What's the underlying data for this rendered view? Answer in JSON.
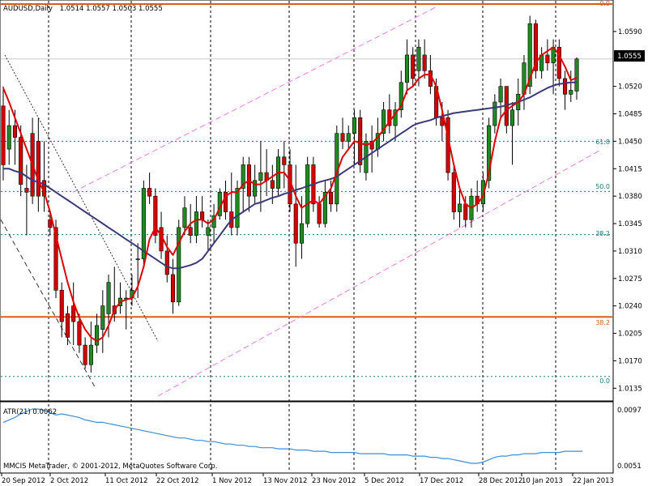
{
  "main_header": {
    "symbol": "AUDUSD,Daily",
    "ohlc": "1.0514 1.0557 1.0503 1.0555",
    "current_price": "1.0555"
  },
  "footer_text": "MMCIS MetaTrader, © 2001-2012, MetaQuotes Software Corp.",
  "atr_panel": {
    "label": "ATR(21) 0.0062",
    "ticks": [
      "0.0097",
      "0.0051"
    ]
  },
  "y_ticks": [
    "1.0590",
    "1.0555",
    "1.0520",
    "1.0485",
    "1.0450",
    "1.0415",
    "1.0380",
    "1.0345",
    "1.0310",
    "1.0275",
    "1.0240",
    "1.0205",
    "1.0170",
    "1.0135"
  ],
  "x_ticks": [
    "20 Sep 2012",
    "2 Oct 2012",
    "11 Oct 2012",
    "22 Oct 2012",
    "1 Nov 2012",
    "13 Nov 2012",
    "23 Nov 2012",
    "5 Dec 2012",
    "17 Dec 2012",
    "28 Dec 2012",
    "10 Jan 2013",
    "22 Jan 2013"
  ],
  "fib_labels": {
    "top_orange": "0.0",
    "orange_382": "38.2",
    "teal_618": "61.8",
    "teal_50": "50.0",
    "teal_382": "38.2",
    "teal_0": "0.0"
  },
  "colors": {
    "bull": "#1f8a1f",
    "bear": "#d40000",
    "ma_fast": "#e00000",
    "ma_slow": "#3a3a7a",
    "atr": "#3c8ed8",
    "fib_orange": "#e05a1a",
    "fib_teal": "#1a7a7a",
    "channel": "#e57fe5"
  },
  "chart_data": {
    "type": "candlestick",
    "symbol": "AUDUSD",
    "timeframe": "Daily",
    "ylim": [
      1.0125,
      1.0625
    ],
    "candles": [
      {
        "o": 1.0495,
        "h": 1.052,
        "l": 1.04,
        "c": 1.042
      },
      {
        "o": 1.044,
        "h": 1.049,
        "l": 1.042,
        "c": 1.047
      },
      {
        "o": 1.047,
        "h": 1.049,
        "l": 1.042,
        "c": 1.0455
      },
      {
        "o": 1.0455,
        "h": 1.047,
        "l": 1.038,
        "c": 1.0395
      },
      {
        "o": 1.039,
        "h": 1.042,
        "l": 1.033,
        "c": 1.0385
      },
      {
        "o": 1.046,
        "h": 1.048,
        "l": 1.037,
        "c": 1.038
      },
      {
        "o": 1.045,
        "h": 1.048,
        "l": 1.036,
        "c": 1.038
      },
      {
        "o": 1.04,
        "h": 1.045,
        "l": 1.036,
        "c": 1.038
      },
      {
        "o": 1.035,
        "h": 1.036,
        "l": 1.033,
        "c": 1.034
      },
      {
        "o": 1.034,
        "h": 1.035,
        "l": 1.025,
        "c": 1.026
      },
      {
        "o": 1.026,
        "h": 1.027,
        "l": 1.02,
        "c": 1.022
      },
      {
        "o": 1.023,
        "h": 1.024,
        "l": 1.019,
        "c": 1.02
      },
      {
        "o": 1.024,
        "h": 1.027,
        "l": 1.019,
        "c": 1.022
      },
      {
        "o": 1.022,
        "h": 1.023,
        "l": 1.018,
        "c": 1.019
      },
      {
        "o": 1.019,
        "h": 1.02,
        "l": 1.016,
        "c": 1.0165
      },
      {
        "o": 1.0165,
        "h": 1.022,
        "l": 1.0155,
        "c": 1.019
      },
      {
        "o": 1.019,
        "h": 1.023,
        "l": 1.018,
        "c": 1.0215
      },
      {
        "o": 1.021,
        "h": 1.026,
        "l": 1.018,
        "c": 1.024
      },
      {
        "o": 1.023,
        "h": 1.028,
        "l": 1.02,
        "c": 1.027
      },
      {
        "o": 1.024,
        "h": 1.029,
        "l": 1.022,
        "c": 1.023
      },
      {
        "o": 1.024,
        "h": 1.027,
        "l": 1.023,
        "c": 1.025
      },
      {
        "o": 1.025,
        "h": 1.026,
        "l": 1.021,
        "c": 1.025
      },
      {
        "o": 1.025,
        "h": 1.028,
        "l": 1.024,
        "c": 1.026
      },
      {
        "o": 1.03,
        "h": 1.032,
        "l": 1.025,
        "c": 1.03
      },
      {
        "o": 1.03,
        "h": 1.04,
        "l": 1.029,
        "c": 1.039
      },
      {
        "o": 1.039,
        "h": 1.041,
        "l": 1.037,
        "c": 1.038
      },
      {
        "o": 1.038,
        "h": 1.039,
        "l": 1.032,
        "c": 1.033
      },
      {
        "o": 1.034,
        "h": 1.036,
        "l": 1.03,
        "c": 1.031
      },
      {
        "o": 1.031,
        "h": 1.033,
        "l": 1.027,
        "c": 1.028
      },
      {
        "o": 1.028,
        "h": 1.03,
        "l": 1.023,
        "c": 1.0245
      },
      {
        "o": 1.0245,
        "h": 1.035,
        "l": 1.024,
        "c": 1.034
      },
      {
        "o": 1.034,
        "h": 1.038,
        "l": 1.033,
        "c": 1.0365
      },
      {
        "o": 1.034,
        "h": 1.037,
        "l": 1.032,
        "c": 1.033
      },
      {
        "o": 1.033,
        "h": 1.038,
        "l": 1.032,
        "c": 1.036
      },
      {
        "o": 1.036,
        "h": 1.038,
        "l": 1.034,
        "c": 1.035
      },
      {
        "o": 1.033,
        "h": 1.035,
        "l": 1.031,
        "c": 1.034
      },
      {
        "o": 1.034,
        "h": 1.037,
        "l": 1.032,
        "c": 1.0355
      },
      {
        "o": 1.0355,
        "h": 1.039,
        "l": 1.035,
        "c": 1.0385
      },
      {
        "o": 1.0385,
        "h": 1.04,
        "l": 1.035,
        "c": 1.036
      },
      {
        "o": 1.036,
        "h": 1.041,
        "l": 1.033,
        "c": 1.034
      },
      {
        "o": 1.034,
        "h": 1.04,
        "l": 1.033,
        "c": 1.039
      },
      {
        "o": 1.039,
        "h": 1.043,
        "l": 1.036,
        "c": 1.042
      },
      {
        "o": 1.042,
        "h": 1.043,
        "l": 1.036,
        "c": 1.038
      },
      {
        "o": 1.038,
        "h": 1.042,
        "l": 1.037,
        "c": 1.04
      },
      {
        "o": 1.04,
        "h": 1.045,
        "l": 1.036,
        "c": 1.041
      },
      {
        "o": 1.041,
        "h": 1.044,
        "l": 1.038,
        "c": 1.04
      },
      {
        "o": 1.04,
        "h": 1.042,
        "l": 1.037,
        "c": 1.039
      },
      {
        "o": 1.039,
        "h": 1.044,
        "l": 1.038,
        "c": 1.043
      },
      {
        "o": 1.043,
        "h": 1.045,
        "l": 1.039,
        "c": 1.042
      },
      {
        "o": 1.042,
        "h": 1.044,
        "l": 1.036,
        "c": 1.037
      },
      {
        "o": 1.037,
        "h": 1.042,
        "l": 1.029,
        "c": 1.032
      },
      {
        "o": 1.032,
        "h": 1.038,
        "l": 1.03,
        "c": 1.0345
      },
      {
        "o": 1.0345,
        "h": 1.043,
        "l": 1.034,
        "c": 1.042
      },
      {
        "o": 1.042,
        "h": 1.043,
        "l": 1.036,
        "c": 1.037
      },
      {
        "o": 1.037,
        "h": 1.038,
        "l": 1.034,
        "c": 1.0345
      },
      {
        "o": 1.0345,
        "h": 1.04,
        "l": 1.034,
        "c": 1.0385
      },
      {
        "o": 1.0385,
        "h": 1.04,
        "l": 1.036,
        "c": 1.037
      },
      {
        "o": 1.037,
        "h": 1.047,
        "l": 1.036,
        "c": 1.046
      },
      {
        "o": 1.046,
        "h": 1.048,
        "l": 1.044,
        "c": 1.045
      },
      {
        "o": 1.045,
        "h": 1.047,
        "l": 1.044,
        "c": 1.046
      },
      {
        "o": 1.046,
        "h": 1.049,
        "l": 1.042,
        "c": 1.048
      },
      {
        "o": 1.048,
        "h": 1.049,
        "l": 1.041,
        "c": 1.042
      },
      {
        "o": 1.041,
        "h": 1.046,
        "l": 1.04,
        "c": 1.045
      },
      {
        "o": 1.045,
        "h": 1.047,
        "l": 1.041,
        "c": 1.044
      },
      {
        "o": 1.044,
        "h": 1.048,
        "l": 1.043,
        "c": 1.046
      },
      {
        "o": 1.046,
        "h": 1.05,
        "l": 1.045,
        "c": 1.049
      },
      {
        "o": 1.049,
        "h": 1.051,
        "l": 1.046,
        "c": 1.047
      },
      {
        "o": 1.047,
        "h": 1.05,
        "l": 1.045,
        "c": 1.049
      },
      {
        "o": 1.049,
        "h": 1.054,
        "l": 1.048,
        "c": 1.0525
      },
      {
        "o": 1.0525,
        "h": 1.058,
        "l": 1.051,
        "c": 1.056
      },
      {
        "o": 1.056,
        "h": 1.057,
        "l": 1.052,
        "c": 1.053
      },
      {
        "o": 1.054,
        "h": 1.058,
        "l": 1.052,
        "c": 1.057
      },
      {
        "o": 1.056,
        "h": 1.058,
        "l": 1.053,
        "c": 1.054
      },
      {
        "o": 1.054,
        "h": 1.056,
        "l": 1.051,
        "c": 1.052
      },
      {
        "o": 1.052,
        "h": 1.053,
        "l": 1.047,
        "c": 1.048
      },
      {
        "o": 1.048,
        "h": 1.05,
        "l": 1.045,
        "c": 1.047
      },
      {
        "o": 1.048,
        "h": 1.049,
        "l": 1.04,
        "c": 1.041
      },
      {
        "o": 1.041,
        "h": 1.042,
        "l": 1.035,
        "c": 1.036
      },
      {
        "o": 1.036,
        "h": 1.039,
        "l": 1.034,
        "c": 1.037
      },
      {
        "o": 1.037,
        "h": 1.038,
        "l": 1.034,
        "c": 1.035
      },
      {
        "o": 1.035,
        "h": 1.039,
        "l": 1.034,
        "c": 1.038
      },
      {
        "o": 1.038,
        "h": 1.04,
        "l": 1.036,
        "c": 1.037
      },
      {
        "o": 1.037,
        "h": 1.041,
        "l": 1.036,
        "c": 1.04
      },
      {
        "o": 1.04,
        "h": 1.048,
        "l": 1.039,
        "c": 1.047
      },
      {
        "o": 1.047,
        "h": 1.051,
        "l": 1.046,
        "c": 1.05
      },
      {
        "o": 1.05,
        "h": 1.053,
        "l": 1.048,
        "c": 1.052
      },
      {
        "o": 1.052,
        "h": 1.052,
        "l": 1.046,
        "c": 1.047
      },
      {
        "o": 1.047,
        "h": 1.05,
        "l": 1.042,
        "c": 1.049
      },
      {
        "o": 1.049,
        "h": 1.053,
        "l": 1.047,
        "c": 1.051
      },
      {
        "o": 1.051,
        "h": 1.056,
        "l": 1.049,
        "c": 1.055
      },
      {
        "o": 1.052,
        "h": 1.061,
        "l": 1.051,
        "c": 1.06
      },
      {
        "o": 1.06,
        "h": 1.0605,
        "l": 1.053,
        "c": 1.054
      },
      {
        "o": 1.054,
        "h": 1.057,
        "l": 1.053,
        "c": 1.056
      },
      {
        "o": 1.056,
        "h": 1.058,
        "l": 1.054,
        "c": 1.055
      },
      {
        "o": 1.055,
        "h": 1.058,
        "l": 1.051,
        "c": 1.057
      },
      {
        "o": 1.057,
        "h": 1.058,
        "l": 1.052,
        "c": 1.053
      },
      {
        "o": 1.053,
        "h": 1.054,
        "l": 1.049,
        "c": 1.051
      },
      {
        "o": 1.051,
        "h": 1.054,
        "l": 1.05,
        "c": 1.0515
      },
      {
        "o": 1.0514,
        "h": 1.0557,
        "l": 1.0503,
        "c": 1.0555
      }
    ],
    "ma_fast": [
      1.0518,
      1.05,
      1.048,
      1.046,
      1.044,
      1.042,
      1.04,
      1.0385,
      1.036,
      1.033,
      1.03,
      1.027,
      1.0245,
      1.0225,
      1.021,
      1.02,
      1.0195,
      1.02,
      1.0215,
      1.0235,
      1.0245,
      1.0248,
      1.025,
      1.0265,
      1.029,
      1.0325,
      1.034,
      1.033,
      1.0315,
      1.0305,
      1.032,
      1.0335,
      1.0345,
      1.035,
      1.035,
      1.0345,
      1.035,
      1.0365,
      1.038,
      1.0385,
      1.0385,
      1.0395,
      1.04,
      1.0395,
      1.0395,
      1.04,
      1.0405,
      1.041,
      1.041,
      1.04,
      1.038,
      1.0365,
      1.037,
      1.0375,
      1.037,
      1.038,
      1.039,
      1.041,
      1.043,
      1.044,
      1.045,
      1.0448,
      1.0445,
      1.0448,
      1.0455,
      1.0465,
      1.0475,
      1.0485,
      1.0495,
      1.0515,
      1.052,
      1.053,
      1.0535,
      1.0535,
      1.052,
      1.049,
      1.0455,
      1.042,
      1.039,
      1.037,
      1.0365,
      1.037,
      1.038,
      1.041,
      1.045,
      1.048,
      1.049,
      1.0495,
      1.05,
      1.051,
      1.053,
      1.055,
      1.056,
      1.0565,
      1.057,
      1.056,
      1.0545,
      1.0528,
      1.0531
    ],
    "ma_slow": [
      1.0415,
      1.0415,
      1.0412,
      1.041,
      1.0405,
      1.04,
      1.0398,
      1.0395,
      1.039,
      1.0385,
      1.038,
      1.0375,
      1.037,
      1.0365,
      1.036,
      1.0355,
      1.035,
      1.0345,
      1.034,
      1.0335,
      1.033,
      1.0325,
      1.032,
      1.0315,
      1.031,
      1.0305,
      1.03,
      1.0295,
      1.029,
      1.0288,
      1.0288,
      1.029,
      1.0292,
      1.0295,
      1.03,
      1.031,
      1.032,
      1.033,
      1.034,
      1.035,
      1.0355,
      1.036,
      1.0365,
      1.037,
      1.0372,
      1.0375,
      1.0378,
      1.038,
      1.0383,
      1.0385,
      1.0388,
      1.039,
      1.0393,
      1.0395,
      1.0398,
      1.04,
      1.0402,
      1.0405,
      1.041,
      1.0415,
      1.042,
      1.0425,
      1.043,
      1.0435,
      1.044,
      1.0445,
      1.045,
      1.0455,
      1.046,
      1.0465,
      1.047,
      1.0473,
      1.0475,
      1.0477,
      1.048,
      1.0482,
      1.0484,
      1.0486,
      1.0487,
      1.0488,
      1.0489,
      1.049,
      1.0491,
      1.0492,
      1.0493,
      1.0494,
      1.0496,
      1.0498,
      1.05,
      1.0503,
      1.0506,
      1.051,
      1.0514,
      1.0518,
      1.0521,
      1.0523,
      1.0524,
      1.0525,
      1.0525
    ],
    "atr": [
      0.0086,
      0.0088,
      0.009,
      0.0093,
      0.0095,
      0.0097,
      0.0097,
      0.0096,
      0.0094,
      0.0092,
      0.0093,
      0.0092,
      0.0091,
      0.009,
      0.0088,
      0.0087,
      0.0086,
      0.0086,
      0.0085,
      0.0084,
      0.0083,
      0.0082,
      0.0081,
      0.008,
      0.0079,
      0.0078,
      0.0077,
      0.0076,
      0.0075,
      0.0074,
      0.0073,
      0.0073,
      0.0072,
      0.0071,
      0.0071,
      0.007,
      0.007,
      0.0069,
      0.0068,
      0.0068,
      0.0067,
      0.0067,
      0.0066,
      0.0066,
      0.0065,
      0.0065,
      0.0065,
      0.0064,
      0.0064,
      0.0064,
      0.0063,
      0.0063,
      0.0063,
      0.0062,
      0.0062,
      0.0062,
      0.0061,
      0.0061,
      0.0061,
      0.0061,
      0.0061,
      0.006,
      0.006,
      0.006,
      0.006,
      0.006,
      0.0059,
      0.0059,
      0.0059,
      0.0059,
      0.0058,
      0.0058,
      0.0058,
      0.0057,
      0.0057,
      0.0056,
      0.0056,
      0.0055,
      0.0054,
      0.0053,
      0.0052,
      0.0052,
      0.0053,
      0.0055,
      0.0057,
      0.0058,
      0.0058,
      0.0059,
      0.0059,
      0.006,
      0.006,
      0.006,
      0.0061,
      0.0061,
      0.0061,
      0.0061,
      0.0062,
      0.0062,
      0.0062,
      0.0062
    ],
    "fib_levels_teal": [
      {
        "label": "61.8",
        "price": 1.045
      },
      {
        "label": "50.0",
        "price": 1.0386
      },
      {
        "label": "38.2",
        "price": 1.0331
      },
      {
        "label": "0.0",
        "price": 1.015
      }
    ],
    "fib_levels_orange": [
      {
        "label": "0.0",
        "price": 1.0625
      },
      {
        "label": "38.2",
        "price": 1.0226
      }
    ],
    "current_price_marker": 1.0555,
    "atr_ylim": [
      0.005,
      0.0097
    ]
  }
}
